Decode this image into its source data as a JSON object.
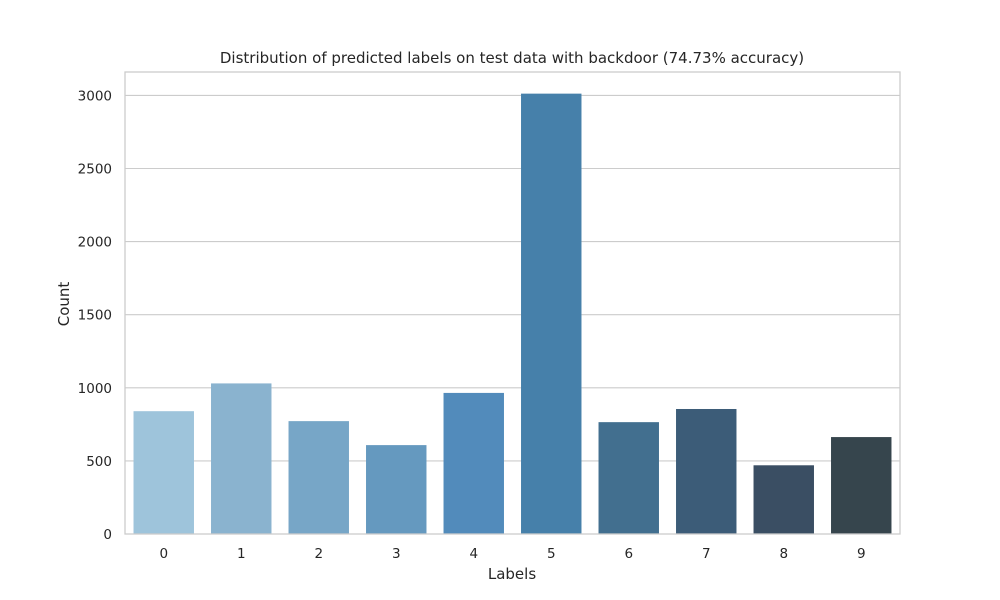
{
  "chart_data": {
    "type": "bar",
    "title": "Distribution of predicted labels on test data with backdoor  (74.73% accuracy)",
    "xlabel": "Labels",
    "ylabel": "Count",
    "categories": [
      "0",
      "1",
      "2",
      "3",
      "4",
      "5",
      "6",
      "7",
      "8",
      "9"
    ],
    "values": [
      840,
      1030,
      772,
      608,
      965,
      3012,
      765,
      855,
      470,
      663
    ],
    "ylim": [
      0,
      3160
    ],
    "yticks": [
      0,
      500,
      1000,
      1500,
      2000,
      2500,
      3000
    ],
    "grid": "horizontal",
    "colors": [
      "#9ec4db",
      "#8ab3cf",
      "#77a6c7",
      "#6599bf",
      "#528bbb",
      "#4680aa",
      "#426f8f",
      "#3c5c78",
      "#3a4e63",
      "#36454d"
    ]
  }
}
